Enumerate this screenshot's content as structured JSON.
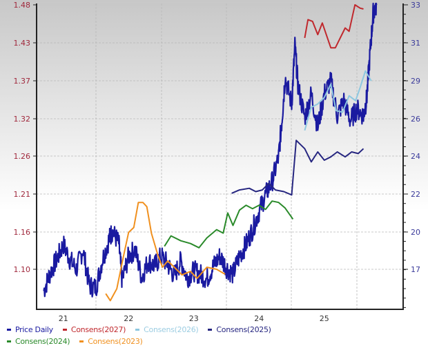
{
  "chart_data": {
    "type": "line",
    "title": "",
    "xlabel": "",
    "ylabel_left": "",
    "ylabel_right": "",
    "x_ticks": [
      "21",
      "22",
      "23",
      "24",
      "25"
    ],
    "y_left_ticks": [
      "1.48",
      "1.43",
      "1.37",
      "1.32",
      "1.26",
      "1.21",
      "1.16",
      "1.10"
    ],
    "y_right_ticks": [
      "33",
      "31",
      "29",
      "26",
      "24",
      "22",
      "20",
      "17"
    ],
    "y_left_range": [
      1.05,
      1.48
    ],
    "y_right_range": [
      15,
      33
    ],
    "grid": true,
    "legend_position": "bottom",
    "series": [
      {
        "name": "Price Daily",
        "axis": "right",
        "color": "#1a1aa0",
        "points": [
          [
            20.7,
            15.7
          ],
          [
            20.8,
            16.8
          ],
          [
            20.9,
            17.6
          ],
          [
            21.0,
            18.5
          ],
          [
            21.1,
            17.6
          ],
          [
            21.2,
            17.0
          ],
          [
            21.3,
            18.2
          ],
          [
            21.4,
            16.0
          ],
          [
            21.5,
            15.9
          ],
          [
            21.6,
            17.6
          ],
          [
            21.7,
            18.8
          ],
          [
            21.75,
            19.3
          ],
          [
            21.85,
            18.6
          ],
          [
            21.9,
            16.3
          ],
          [
            22.0,
            17.8
          ],
          [
            22.1,
            18.2
          ],
          [
            22.2,
            16.5
          ],
          [
            22.3,
            17.5
          ],
          [
            22.4,
            17.2
          ],
          [
            22.5,
            17.8
          ],
          [
            22.6,
            17.3
          ],
          [
            22.7,
            16.6
          ],
          [
            22.8,
            17.5
          ],
          [
            22.9,
            16.5
          ],
          [
            23.0,
            16.9
          ],
          [
            23.1,
            16.7
          ],
          [
            23.2,
            16.4
          ],
          [
            23.3,
            17.2
          ],
          [
            23.4,
            17.8
          ],
          [
            23.5,
            17.1
          ],
          [
            23.6,
            16.7
          ],
          [
            23.7,
            17.8
          ],
          [
            23.8,
            18.5
          ],
          [
            23.9,
            19.4
          ],
          [
            24.0,
            20.5
          ],
          [
            24.1,
            21.5
          ],
          [
            24.2,
            22.3
          ],
          [
            24.3,
            23.8
          ],
          [
            24.35,
            26.0
          ],
          [
            24.4,
            28.6
          ],
          [
            24.5,
            27.0
          ],
          [
            24.55,
            30.5
          ],
          [
            24.6,
            28.0
          ],
          [
            24.7,
            26.2
          ],
          [
            24.8,
            27.6
          ],
          [
            24.9,
            25.6
          ],
          [
            25.0,
            27.6
          ],
          [
            25.1,
            28.4
          ],
          [
            25.2,
            26.3
          ],
          [
            25.3,
            27.2
          ],
          [
            25.4,
            26.0
          ],
          [
            25.5,
            26.7
          ],
          [
            25.6,
            26.3
          ],
          [
            25.65,
            27.3
          ],
          [
            25.7,
            30.0
          ],
          [
            25.75,
            32.5
          ],
          [
            25.8,
            33.0
          ]
        ]
      },
      {
        "name": "Consens(2027)",
        "axis": "right",
        "color": "#c0282d",
        "points": [
          [
            24.7,
            31.0
          ],
          [
            24.75,
            32.1
          ],
          [
            24.82,
            32.0
          ],
          [
            24.9,
            31.2
          ],
          [
            24.97,
            31.9
          ],
          [
            25.1,
            30.4
          ],
          [
            25.17,
            30.4
          ],
          [
            25.32,
            31.6
          ],
          [
            25.38,
            31.4
          ],
          [
            25.47,
            33.0
          ],
          [
            25.55,
            32.8
          ],
          [
            25.6,
            32.75
          ]
        ]
      },
      {
        "name": "Consens(2026)",
        "axis": "right",
        "color": "#8ec8e0",
        "points": [
          [
            24.7,
            25.4
          ],
          [
            24.8,
            26.8
          ],
          [
            24.9,
            27.0
          ],
          [
            25.0,
            27.4
          ],
          [
            25.1,
            28.2
          ],
          [
            25.18,
            26.6
          ],
          [
            25.28,
            26.5
          ],
          [
            25.38,
            27.5
          ],
          [
            25.48,
            27.2
          ],
          [
            25.55,
            28.0
          ],
          [
            25.63,
            29.0
          ],
          [
            25.72,
            28.4
          ]
        ]
      },
      {
        "name": "Consens(2025)",
        "axis": "right",
        "color": "#262680",
        "points": [
          [
            23.58,
            21.6
          ],
          [
            23.7,
            21.8
          ],
          [
            23.85,
            21.9
          ],
          [
            23.95,
            21.7
          ],
          [
            24.05,
            21.8
          ],
          [
            24.15,
            22.2
          ],
          [
            24.25,
            21.8
          ],
          [
            24.38,
            21.7
          ],
          [
            24.5,
            21.5
          ],
          [
            24.57,
            24.8
          ],
          [
            24.7,
            24.3
          ],
          [
            24.8,
            23.5
          ],
          [
            24.9,
            24.1
          ],
          [
            25.0,
            23.6
          ],
          [
            25.1,
            23.8
          ],
          [
            25.2,
            24.1
          ],
          [
            25.32,
            23.8
          ],
          [
            25.42,
            24.1
          ],
          [
            25.52,
            24.0
          ],
          [
            25.6,
            24.3
          ]
        ]
      },
      {
        "name": "Consens(2024)",
        "axis": "left",
        "color": "#2a8a2a",
        "points": [
          [
            22.55,
            1.133
          ],
          [
            22.65,
            1.148
          ],
          [
            22.8,
            1.141
          ],
          [
            22.95,
            1.137
          ],
          [
            23.08,
            1.131
          ],
          [
            23.2,
            1.145
          ],
          [
            23.35,
            1.157
          ],
          [
            23.45,
            1.152
          ],
          [
            23.52,
            1.181
          ],
          [
            23.6,
            1.163
          ],
          [
            23.7,
            1.185
          ],
          [
            23.8,
            1.192
          ],
          [
            23.9,
            1.187
          ],
          [
            24.0,
            1.192
          ],
          [
            24.1,
            1.186
          ],
          [
            24.2,
            1.198
          ],
          [
            24.3,
            1.196
          ],
          [
            24.4,
            1.188
          ],
          [
            24.52,
            1.172
          ]
        ]
      },
      {
        "name": "Consens(2023)",
        "axis": "left",
        "color": "#f0901e",
        "points": [
          [
            21.65,
            1.065
          ],
          [
            21.72,
            1.055
          ],
          [
            21.82,
            1.072
          ],
          [
            21.92,
            1.118
          ],
          [
            22.0,
            1.153
          ],
          [
            22.08,
            1.16
          ],
          [
            22.15,
            1.196
          ],
          [
            22.22,
            1.196
          ],
          [
            22.28,
            1.19
          ],
          [
            22.35,
            1.152
          ],
          [
            22.45,
            1.12
          ],
          [
            22.52,
            1.103
          ],
          [
            22.6,
            1.112
          ],
          [
            22.7,
            1.103
          ],
          [
            22.82,
            1.092
          ],
          [
            22.95,
            1.097
          ],
          [
            23.05,
            1.087
          ],
          [
            23.2,
            1.103
          ],
          [
            23.35,
            1.1
          ],
          [
            23.48,
            1.093
          ]
        ]
      }
    ]
  },
  "legend": {
    "items": [
      {
        "label": "Price Daily",
        "color": "#1a1aa0"
      },
      {
        "label": "Consens(2027)",
        "color": "#c0282d"
      },
      {
        "label": "Consens(2026)",
        "color": "#8ec8e0"
      },
      {
        "label": "Consens(2025)",
        "color": "#262680"
      },
      {
        "label": "Consens(2024)",
        "color": "#2a8a2a"
      },
      {
        "label": "Consens(2023)",
        "color": "#f0901e"
      }
    ]
  }
}
